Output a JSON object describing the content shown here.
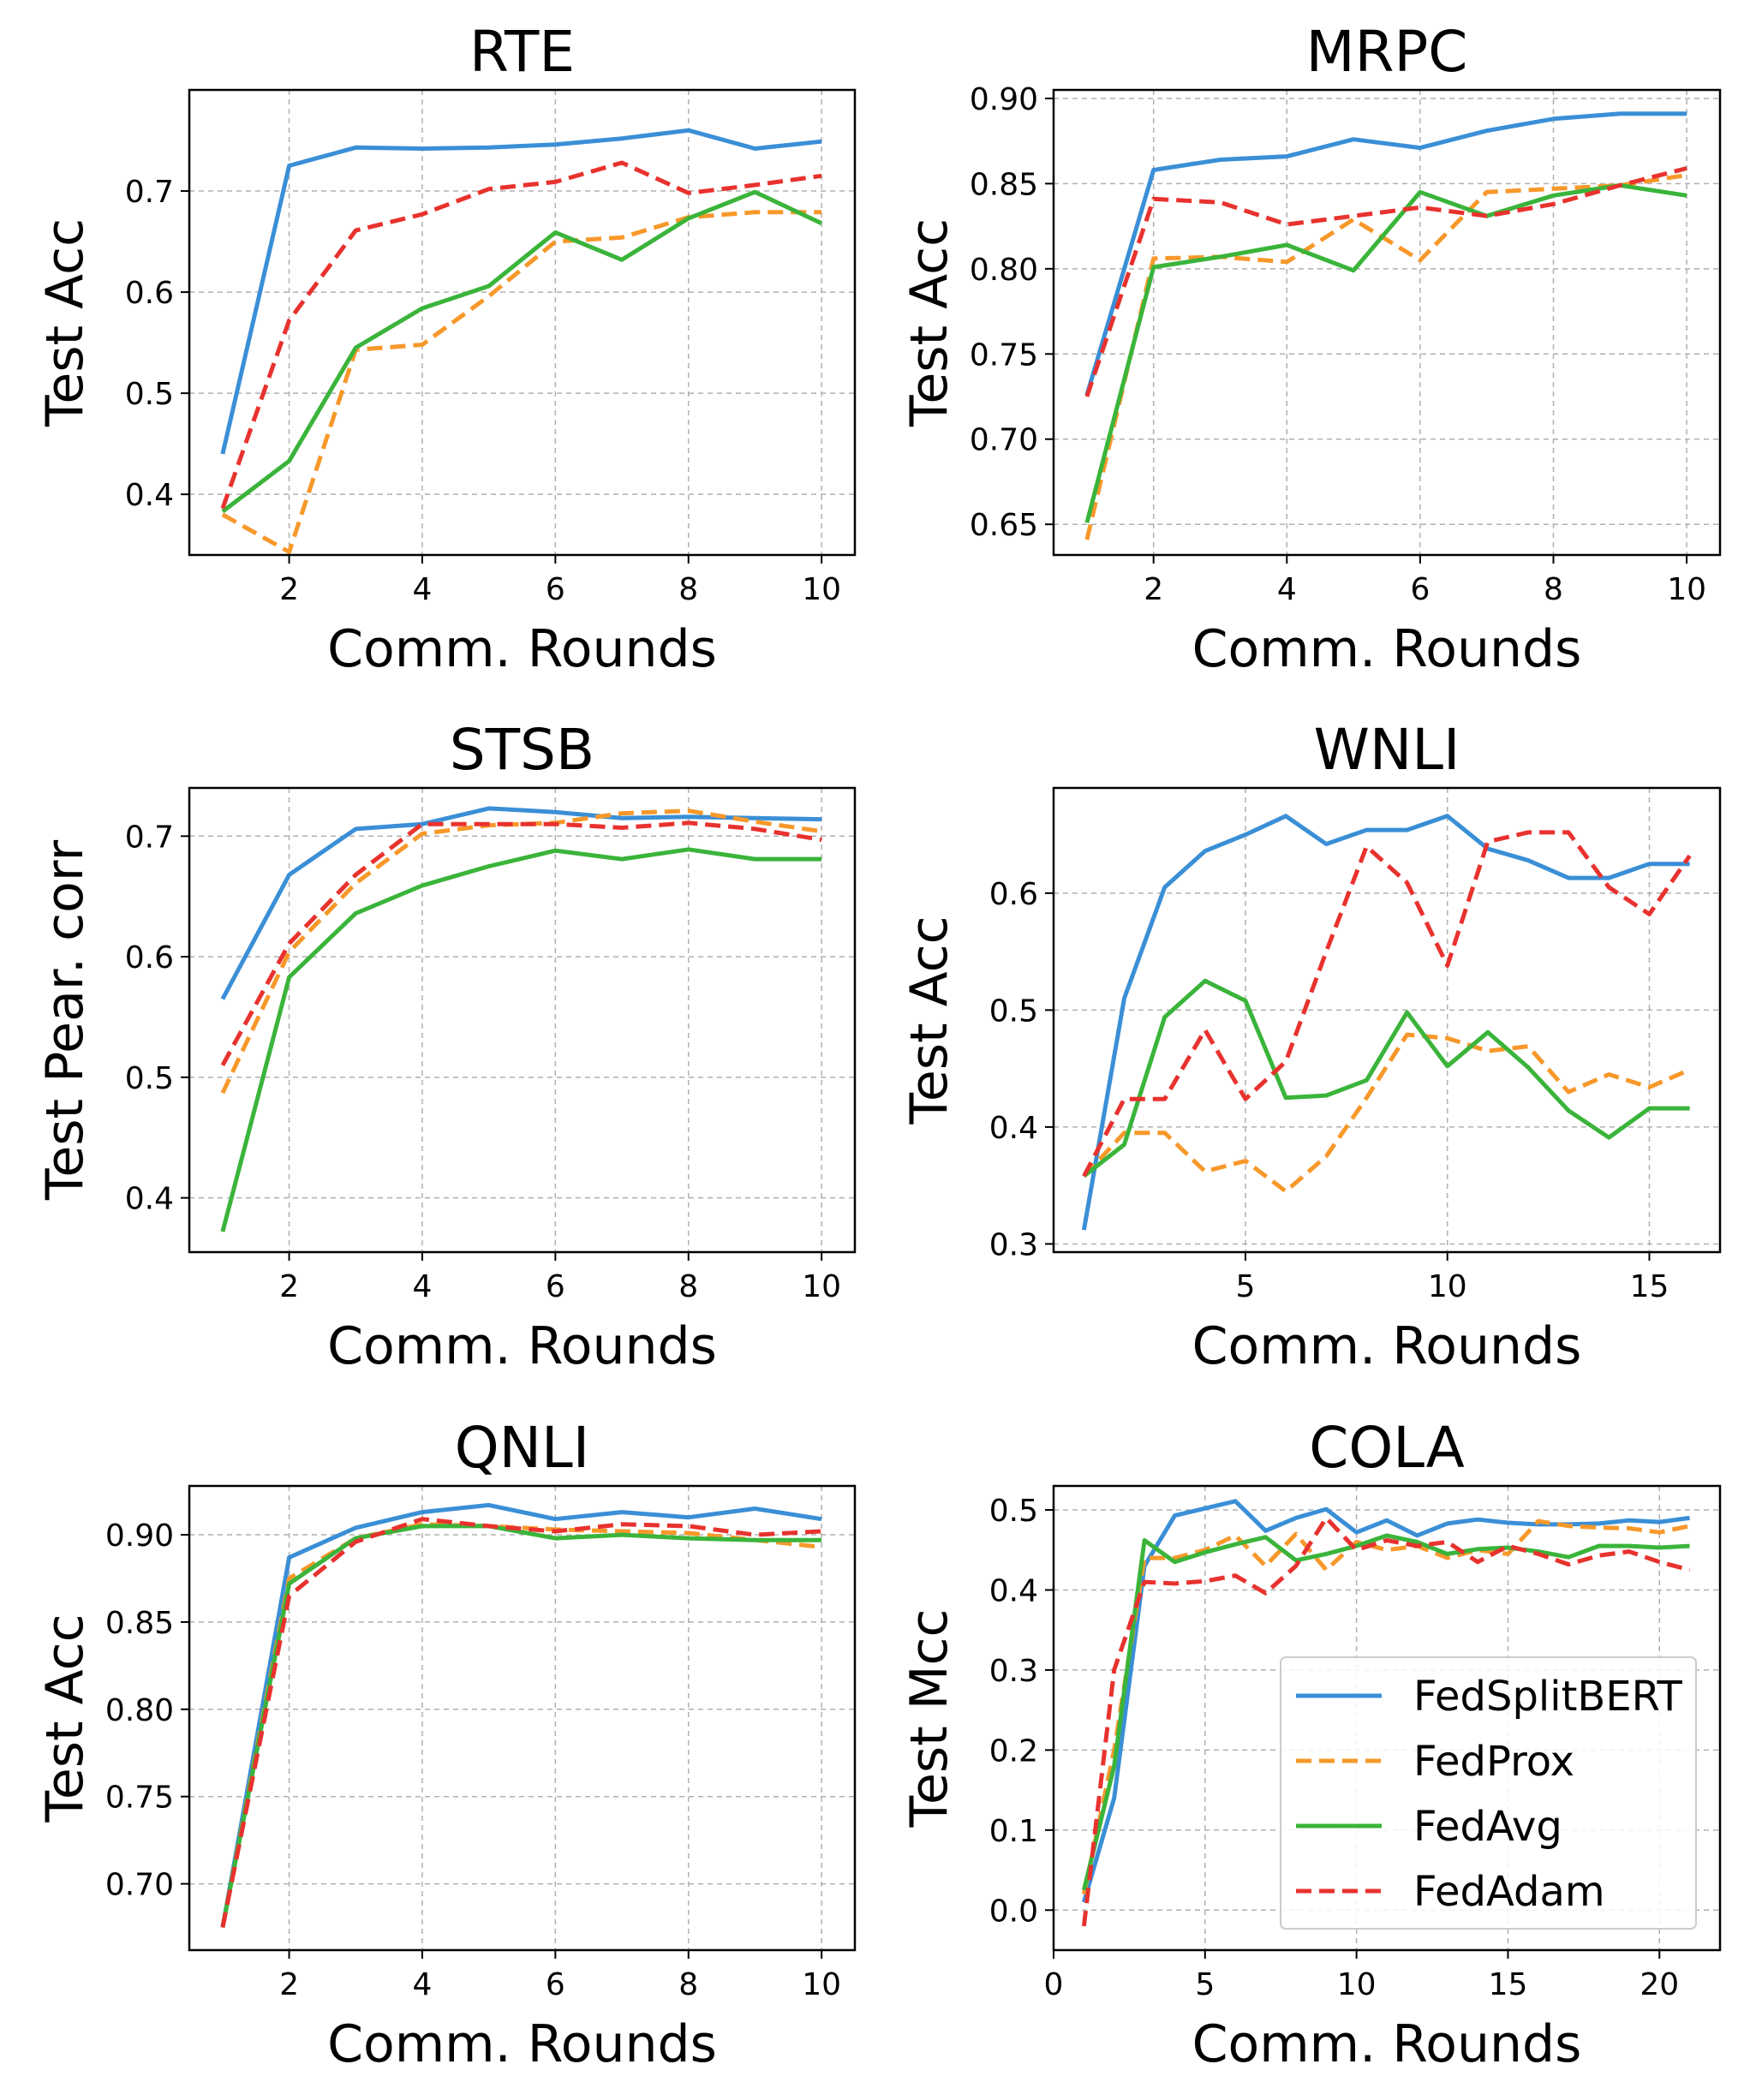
{
  "colors": {
    "FedSplitBERT": "#3a8fd6",
    "FedProx": "#f7982a",
    "FedAvg": "#3ab43a",
    "FedAdam": "#e8322e",
    "grid": "#b0b0b0"
  },
  "legend": {
    "placement": "lower-right of COLA panel",
    "entries": [
      {
        "name": "FedSplitBERT",
        "style": "solid"
      },
      {
        "name": "FedProx",
        "style": "dashed"
      },
      {
        "name": "FedAvg",
        "style": "solid"
      },
      {
        "name": "FedAdam",
        "style": "dashed"
      }
    ]
  },
  "chart_data": [
    {
      "type": "line",
      "title": "RTE",
      "xlabel": "Comm. Rounds",
      "ylabel": "Test Acc",
      "xlim": [
        0.5,
        10.5
      ],
      "ylim": [
        0.34,
        0.8
      ],
      "xticks": [
        2,
        4,
        6,
        8,
        10
      ],
      "xtick_labels": [
        "2",
        "4",
        "6",
        "8",
        "10"
      ],
      "yticks": [
        0.4,
        0.5,
        0.6,
        0.7
      ],
      "ytick_labels": [
        "0.4",
        "0.5",
        "0.6",
        "0.7"
      ],
      "x": [
        1,
        2,
        3,
        4,
        5,
        6,
        7,
        8,
        9,
        10
      ],
      "series": [
        {
          "name": "FedSplitBERT",
          "values": [
            0.44,
            0.725,
            0.743,
            0.742,
            0.743,
            0.746,
            0.752,
            0.76,
            0.742,
            0.749
          ]
        },
        {
          "name": "FedProx",
          "values": [
            0.38,
            0.343,
            0.543,
            0.548,
            0.596,
            0.65,
            0.654,
            0.674,
            0.679,
            0.679
          ]
        },
        {
          "name": "FedAvg",
          "values": [
            0.383,
            0.433,
            0.545,
            0.584,
            0.606,
            0.659,
            0.632,
            0.673,
            0.699,
            0.668
          ]
        },
        {
          "name": "FedAdam",
          "values": [
            0.386,
            0.572,
            0.661,
            0.677,
            0.702,
            0.709,
            0.728,
            0.698,
            0.706,
            0.715
          ]
        }
      ]
    },
    {
      "type": "line",
      "title": "MRPC",
      "xlabel": "Comm. Rounds",
      "ylabel": "Test Acc",
      "xlim": [
        0.5,
        10.5
      ],
      "ylim": [
        0.632,
        0.905
      ],
      "xticks": [
        2,
        4,
        6,
        8,
        10
      ],
      "xtick_labels": [
        "2",
        "4",
        "6",
        "8",
        "10"
      ],
      "yticks": [
        0.65,
        0.7,
        0.75,
        0.8,
        0.85,
        0.9
      ],
      "ytick_labels": [
        "0.65",
        "0.70",
        "0.75",
        "0.80",
        "0.85",
        "0.90"
      ],
      "x": [
        1,
        2,
        3,
        4,
        5,
        6,
        7,
        8,
        9,
        10
      ],
      "series": [
        {
          "name": "FedSplitBERT",
          "values": [
            0.726,
            0.858,
            0.864,
            0.866,
            0.876,
            0.871,
            0.881,
            0.888,
            0.891,
            0.891
          ]
        },
        {
          "name": "FedProx",
          "values": [
            0.641,
            0.806,
            0.807,
            0.804,
            0.829,
            0.805,
            0.845,
            0.847,
            0.849,
            0.855
          ]
        },
        {
          "name": "FedAvg",
          "values": [
            0.651,
            0.801,
            0.807,
            0.814,
            0.799,
            0.845,
            0.831,
            0.843,
            0.849,
            0.843
          ]
        },
        {
          "name": "FedAdam",
          "values": [
            0.725,
            0.841,
            0.839,
            0.826,
            0.831,
            0.836,
            0.831,
            0.838,
            0.849,
            0.859
          ]
        }
      ]
    },
    {
      "type": "line",
      "title": "STSB",
      "xlabel": "Comm. Rounds",
      "ylabel": "Test Pear. corr",
      "xlim": [
        0.5,
        10.5
      ],
      "ylim": [
        0.355,
        0.74
      ],
      "xticks": [
        2,
        4,
        6,
        8,
        10
      ],
      "xtick_labels": [
        "2",
        "4",
        "6",
        "8",
        "10"
      ],
      "yticks": [
        0.4,
        0.5,
        0.6,
        0.7
      ],
      "ytick_labels": [
        "0.4",
        "0.5",
        "0.6",
        "0.7"
      ],
      "x": [
        1,
        2,
        3,
        4,
        5,
        6,
        7,
        8,
        9,
        10
      ],
      "series": [
        {
          "name": "FedSplitBERT",
          "values": [
            0.565,
            0.668,
            0.706,
            0.71,
            0.723,
            0.72,
            0.715,
            0.716,
            0.715,
            0.714
          ]
        },
        {
          "name": "FedProx",
          "values": [
            0.487,
            0.604,
            0.661,
            0.702,
            0.709,
            0.711,
            0.719,
            0.721,
            0.712,
            0.704
          ]
        },
        {
          "name": "FedAvg",
          "values": [
            0.372,
            0.583,
            0.636,
            0.659,
            0.675,
            0.688,
            0.681,
            0.689,
            0.681,
            0.681
          ]
        },
        {
          "name": "FedAdam",
          "values": [
            0.51,
            0.611,
            0.668,
            0.71,
            0.71,
            0.71,
            0.707,
            0.711,
            0.706,
            0.697
          ]
        }
      ]
    },
    {
      "type": "line",
      "title": "WNLI",
      "xlabel": "Comm. Rounds",
      "ylabel": "Test Acc",
      "xlim": [
        0.25,
        16.75
      ],
      "ylim": [
        0.293,
        0.69
      ],
      "xticks": [
        5,
        10,
        15
      ],
      "xtick_labels": [
        "5",
        "10",
        "15"
      ],
      "yticks": [
        0.3,
        0.4,
        0.5,
        0.6
      ],
      "ytick_labels": [
        "0.3",
        "0.4",
        "0.5",
        "0.6"
      ],
      "x": [
        1,
        2,
        3,
        4,
        5,
        6,
        7,
        8,
        9,
        10,
        11,
        12,
        13,
        14,
        15,
        16
      ],
      "series": [
        {
          "name": "FedSplitBERT",
          "values": [
            0.312,
            0.51,
            0.605,
            0.636,
            0.65,
            0.666,
            0.642,
            0.654,
            0.654,
            0.666,
            0.638,
            0.628,
            0.613,
            0.613,
            0.625,
            0.625
          ]
        },
        {
          "name": "FedProx",
          "values": [
            0.358,
            0.395,
            0.395,
            0.362,
            0.371,
            0.345,
            0.375,
            0.425,
            0.479,
            0.476,
            0.465,
            0.469,
            0.43,
            0.445,
            0.434,
            0.449
          ]
        },
        {
          "name": "FedAvg",
          "values": [
            0.358,
            0.385,
            0.494,
            0.525,
            0.508,
            0.425,
            0.427,
            0.44,
            0.498,
            0.452,
            0.481,
            0.451,
            0.414,
            0.391,
            0.416,
            0.416
          ]
        },
        {
          "name": "FedAdam",
          "values": [
            0.358,
            0.424,
            0.424,
            0.483,
            0.424,
            0.456,
            0.55,
            0.64,
            0.609,
            0.538,
            0.644,
            0.652,
            0.652,
            0.605,
            0.582,
            0.632
          ]
        }
      ]
    },
    {
      "type": "line",
      "title": "QNLI",
      "xlabel": "Comm. Rounds",
      "ylabel": "Test Acc",
      "xlim": [
        0.5,
        10.5
      ],
      "ylim": [
        0.662,
        0.928
      ],
      "xticks": [
        2,
        4,
        6,
        8,
        10
      ],
      "xtick_labels": [
        "2",
        "4",
        "6",
        "8",
        "10"
      ],
      "yticks": [
        0.7,
        0.75,
        0.8,
        0.85,
        0.9
      ],
      "ytick_labels": [
        "0.70",
        "0.75",
        "0.80",
        "0.85",
        "0.90"
      ],
      "x": [
        1,
        2,
        3,
        4,
        5,
        6,
        7,
        8,
        9,
        10
      ],
      "series": [
        {
          "name": "FedSplitBERT",
          "values": [
            0.675,
            0.887,
            0.904,
            0.913,
            0.917,
            0.909,
            0.913,
            0.91,
            0.915,
            0.909
          ]
        },
        {
          "name": "FedProx",
          "values": [
            0.675,
            0.875,
            0.898,
            0.906,
            0.905,
            0.903,
            0.902,
            0.901,
            0.897,
            0.893
          ]
        },
        {
          "name": "FedAvg",
          "values": [
            0.675,
            0.872,
            0.898,
            0.905,
            0.905,
            0.898,
            0.9,
            0.898,
            0.897,
            0.897
          ]
        },
        {
          "name": "FedAdam",
          "values": [
            0.675,
            0.865,
            0.896,
            0.909,
            0.905,
            0.902,
            0.906,
            0.905,
            0.9,
            0.902
          ]
        }
      ]
    },
    {
      "type": "line",
      "title": "COLA",
      "xlabel": "Comm. Rounds",
      "ylabel": "Test Mcc",
      "xlim": [
        0,
        22
      ],
      "ylim": [
        -0.05,
        0.53
      ],
      "xticks": [
        0,
        5,
        10,
        15,
        20
      ],
      "xtick_labels": [
        "0",
        "5",
        "10",
        "15",
        "20"
      ],
      "yticks": [
        0.0,
        0.1,
        0.2,
        0.3,
        0.4,
        0.5
      ],
      "ytick_labels": [
        "0.0",
        "0.1",
        "0.2",
        "0.3",
        "0.4",
        "0.5"
      ],
      "x": [
        1,
        2,
        3,
        4,
        5,
        6,
        7,
        8,
        9,
        10,
        11,
        12,
        13,
        14,
        15,
        16,
        17,
        18,
        19,
        20,
        21
      ],
      "series": [
        {
          "name": "FedSplitBERT",
          "values": [
            0.01,
            0.14,
            0.43,
            0.493,
            0.502,
            0.511,
            0.474,
            0.49,
            0.501,
            0.472,
            0.487,
            0.468,
            0.483,
            0.488,
            0.484,
            0.482,
            0.482,
            0.483,
            0.487,
            0.485,
            0.49
          ]
        },
        {
          "name": "FedProx",
          "values": [
            0.02,
            0.2,
            0.44,
            0.44,
            0.45,
            0.468,
            0.43,
            0.47,
            0.425,
            0.46,
            0.45,
            0.455,
            0.44,
            0.45,
            0.445,
            0.486,
            0.48,
            0.478,
            0.477,
            0.472,
            0.48
          ]
        },
        {
          "name": "FedAvg",
          "values": [
            0.025,
            0.18,
            0.462,
            0.435,
            0.447,
            0.457,
            0.466,
            0.437,
            0.445,
            0.455,
            0.468,
            0.46,
            0.445,
            0.451,
            0.453,
            0.448,
            0.441,
            0.455,
            0.455,
            0.453,
            0.455
          ]
        },
        {
          "name": "FedAdam",
          "values": [
            -0.02,
            0.3,
            0.41,
            0.408,
            0.411,
            0.418,
            0.396,
            0.43,
            0.49,
            0.45,
            0.462,
            0.455,
            0.46,
            0.435,
            0.455,
            0.445,
            0.432,
            0.443,
            0.448,
            0.435,
            0.425
          ]
        }
      ]
    }
  ]
}
